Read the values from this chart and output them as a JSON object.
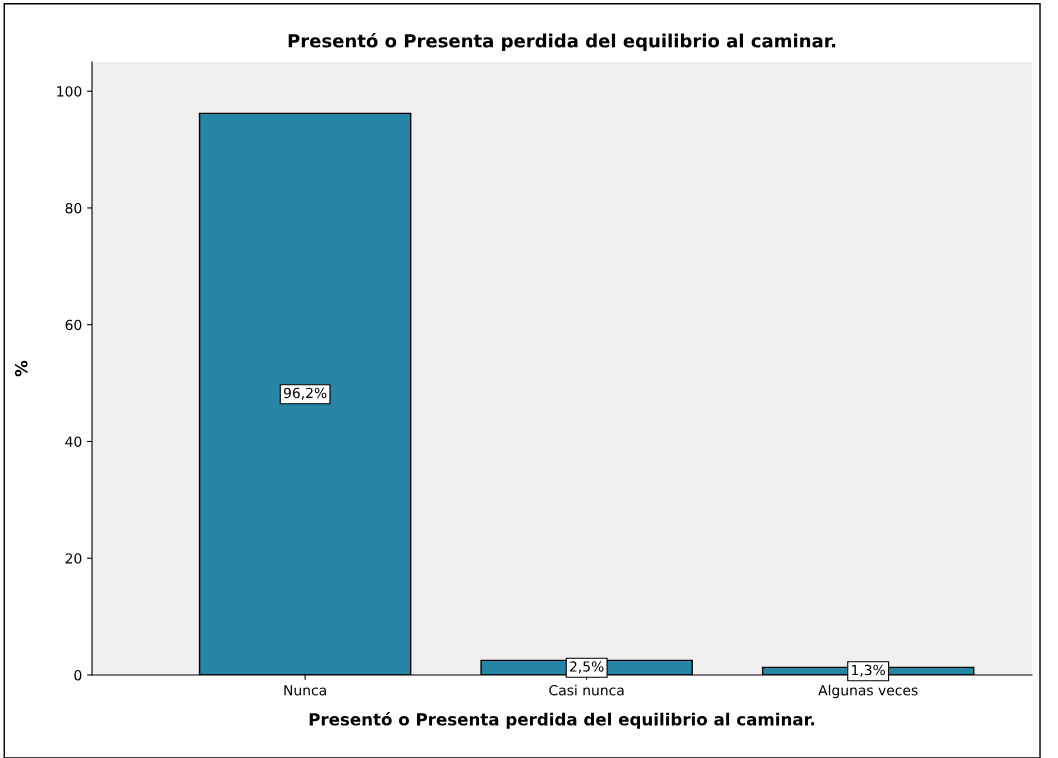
{
  "chart_data": {
    "type": "bar",
    "title": "Presentó o Presenta perdida del equilibrio al caminar.",
    "xlabel": "Presentó o Presenta perdida del equilibrio al caminar.",
    "ylabel": "%",
    "categories": [
      "Nunca",
      "Casi nunca",
      "Algunas veces"
    ],
    "values": [
      96.2,
      2.5,
      1.3
    ],
    "value_labels": [
      "96,2%",
      "2,5%",
      "1,3%"
    ],
    "color": "#2686a6",
    "ylim": [
      0,
      105
    ],
    "yticks": [
      0,
      20,
      40,
      60,
      80,
      100
    ],
    "grid": false,
    "legend": false
  }
}
